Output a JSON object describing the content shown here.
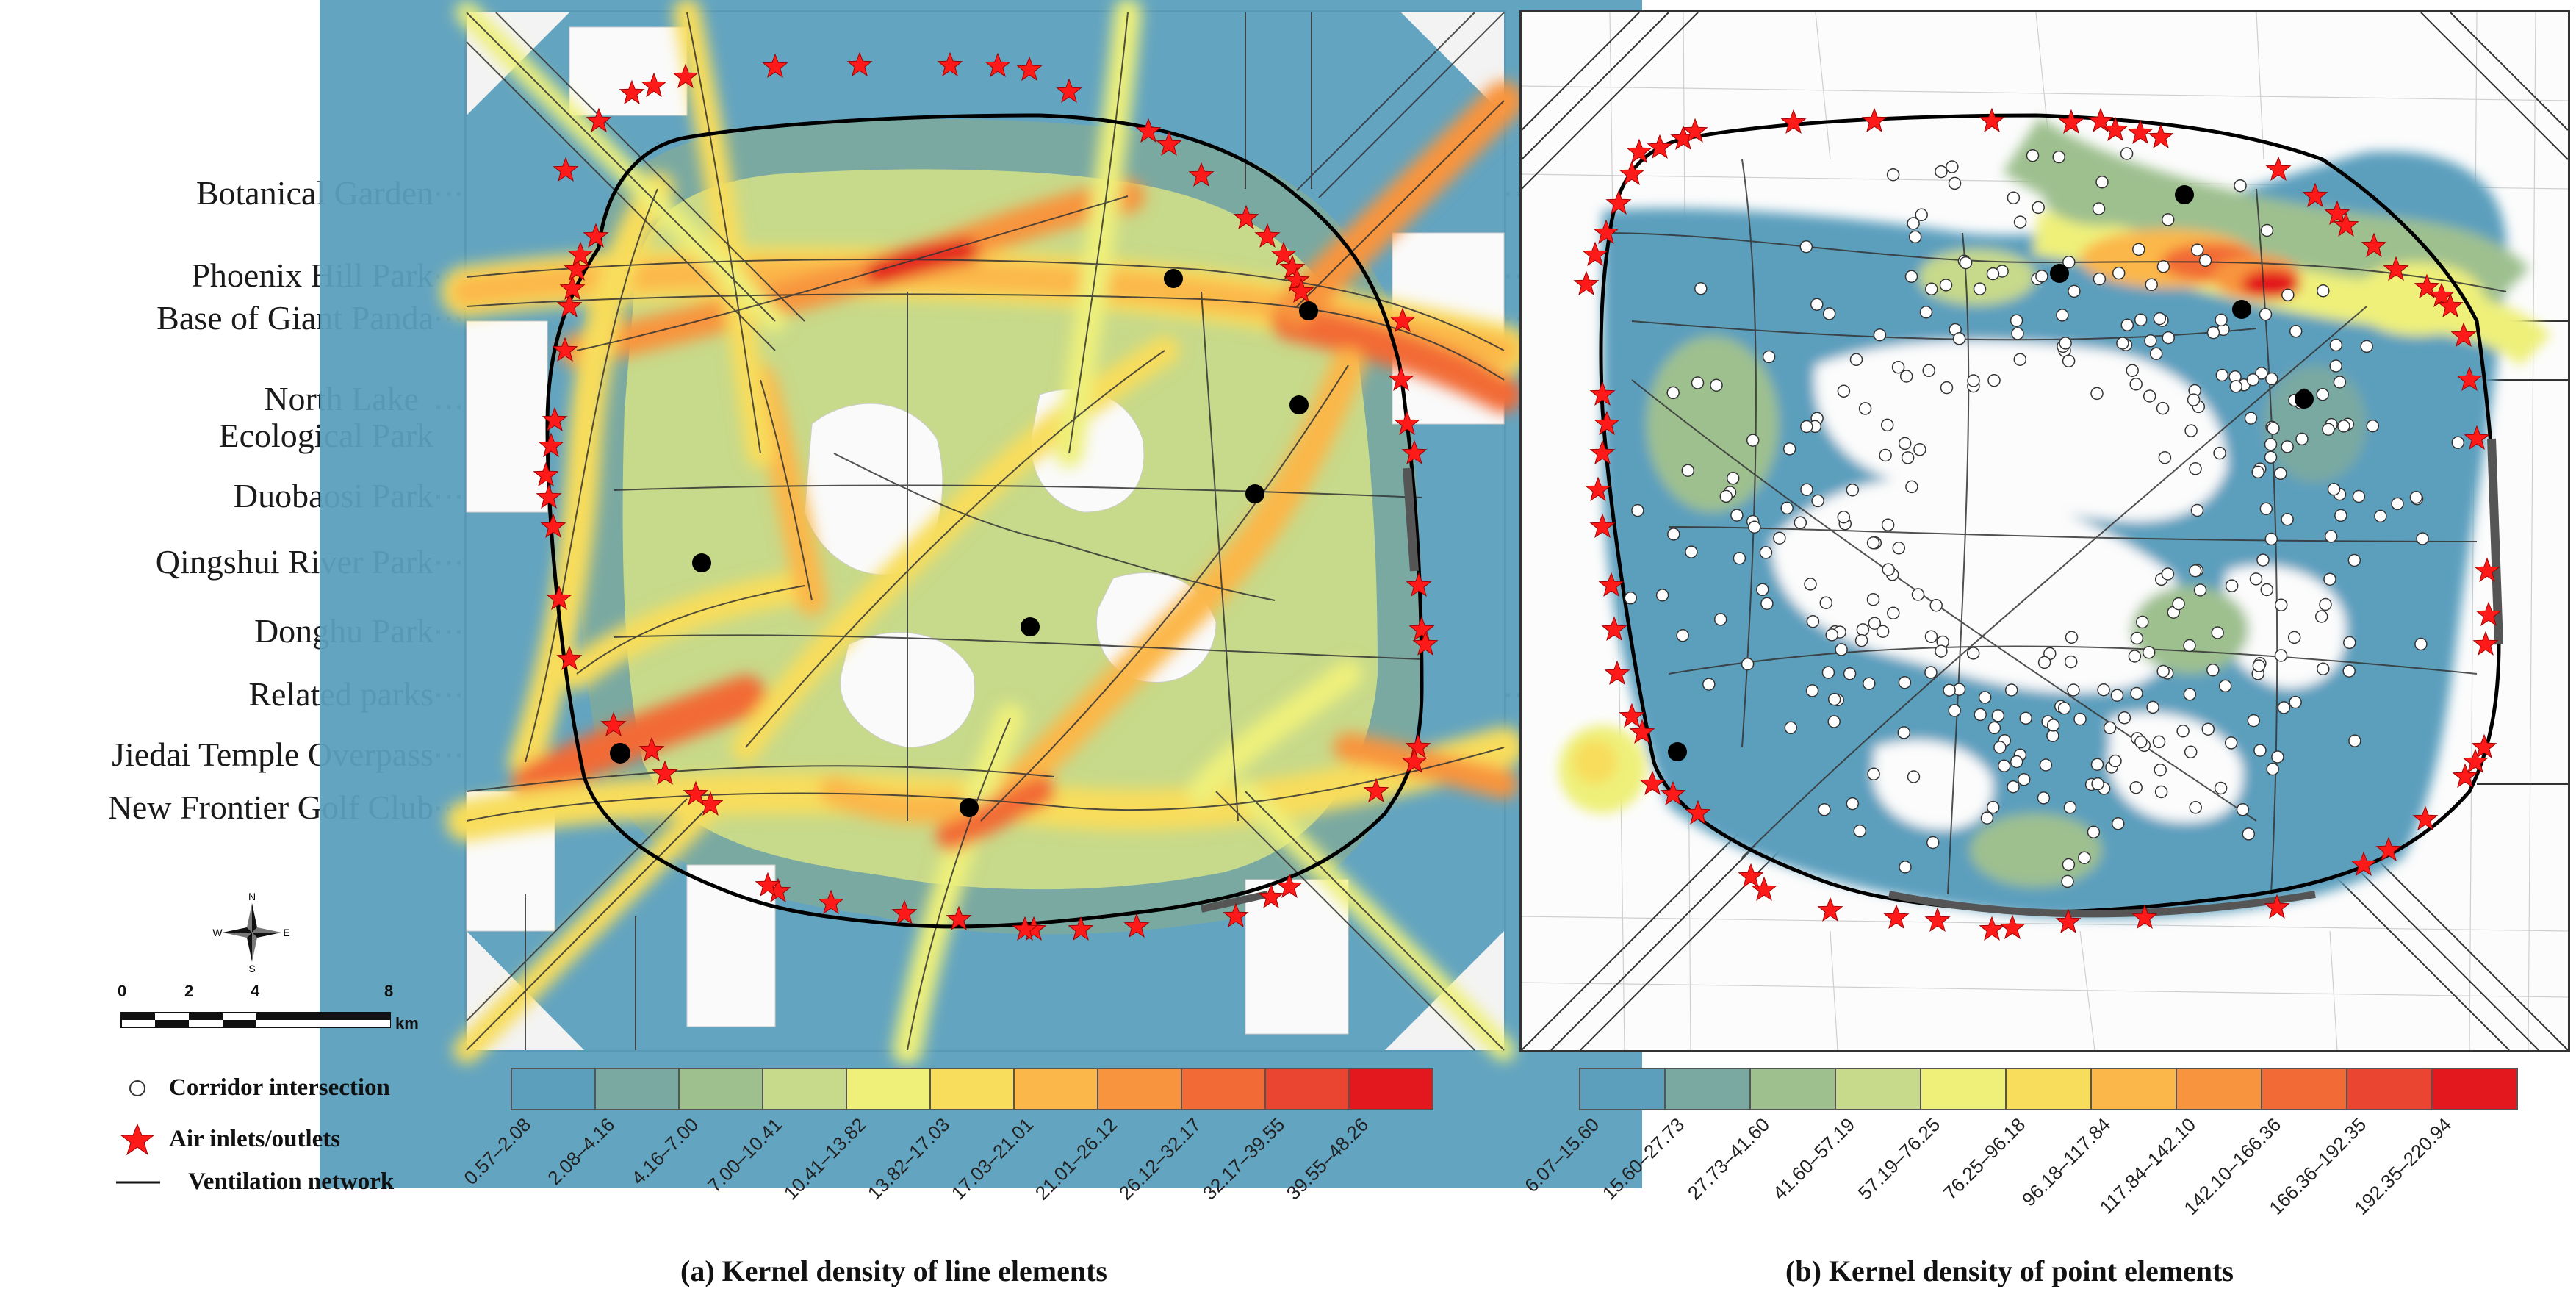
{
  "parks": [
    {
      "label": "Botanical Garden"
    },
    {
      "label": "Phoenix Hill Park"
    },
    {
      "label": "Base of Giant Panda"
    },
    {
      "label": "North Lake"
    },
    {
      "label": "Ecological Park"
    },
    {
      "label": "Duobaosi Park"
    },
    {
      "label": "Qingshui River Park"
    },
    {
      "label": "Donghu Park"
    },
    {
      "label": "Related parks"
    },
    {
      "label": "Jiedai Temple Overpass"
    },
    {
      "label": "New Frontier Golf Club"
    }
  ],
  "legend": {
    "corridor_intersection": "Corridor intersection",
    "air_inlets_outlets": "Air inlets/outlets",
    "ventilation_network": "Ventilation network",
    "symbol_colors": {
      "star": "#ff1a1a",
      "park_dot": "#000000",
      "intersection": "#ffffff"
    }
  },
  "scale_bar": {
    "ticks": [
      "0",
      "2",
      "4",
      "8"
    ],
    "unit": "km"
  },
  "north_arrow": {
    "labels": [
      "N",
      "E",
      "S",
      "W"
    ]
  },
  "panels": {
    "a": {
      "caption": "(a) Kernel density of line elements",
      "classes": [
        "0.57–2.08",
        "2.08–4.16",
        "4.16–7.00",
        "7.00–10.41",
        "10.41–13.82",
        "13.82–17.03",
        "17.03–21.01",
        "21.01–26.12",
        "26.12–32.17",
        "32.17–39.55",
        "39.55–48.26"
      ]
    },
    "b": {
      "caption": "(b) Kernel density of point elements",
      "classes": [
        "6.07–15.60",
        "15.60–27.73",
        "27.73–41.60",
        "41.60–57.19",
        "57.19–76.25",
        "76.25–96.18",
        "96.18–117.84",
        "117.84–142.10",
        "142.10–166.36",
        "166.36–192.35",
        "192.35–220.94"
      ]
    }
  },
  "ramp_colors": [
    "#5b9fbd",
    "#7aa9a2",
    "#9ec08f",
    "#c7d98a",
    "#eef07a",
    "#f8dd5c",
    "#fbb74a",
    "#f8943e",
    "#f26a35",
    "#ea4530",
    "#e3181f"
  ]
}
